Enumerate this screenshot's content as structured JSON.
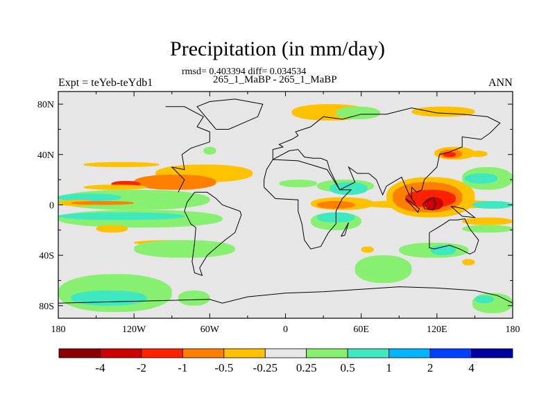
{
  "title": "Precipitation (in mm/day)",
  "subtitle": "rmsd= 0.403394 diff= 0.034534",
  "left_string": "Expt = teYeb-teYdb1",
  "center_string": "265_1_MaBP - 265_1_MaBP",
  "right_string": "ANN",
  "colors": {
    "background_field": "#e6e6e6",
    "coastline": "#000000"
  },
  "chart_data": {
    "type": "heatmap",
    "projection": "cylindrical-equidistant",
    "xlim": [
      -180,
      180
    ],
    "ylim": [
      -90,
      90
    ],
    "x_ticks": [
      {
        "value": -180,
        "label": "180"
      },
      {
        "value": -120,
        "label": "120W"
      },
      {
        "value": -60,
        "label": "60W"
      },
      {
        "value": 0,
        "label": "0"
      },
      {
        "value": 60,
        "label": "60E"
      },
      {
        "value": 120,
        "label": "120E"
      },
      {
        "value": 180,
        "label": "180"
      }
    ],
    "y_ticks": [
      {
        "value": 80,
        "label": "80N"
      },
      {
        "value": 40,
        "label": "40N"
      },
      {
        "value": 0,
        "label": "0"
      },
      {
        "value": -40,
        "label": "40S"
      },
      {
        "value": -80,
        "label": "80S"
      }
    ],
    "colorbar": {
      "colors": [
        "#8b0000",
        "#cc0000",
        "#ff2200",
        "#ff7f00",
        "#ffc200",
        "#e6e6e6",
        "#88f070",
        "#40e8c0",
        "#00b4ff",
        "#0040ff",
        "#0000a0"
      ],
      "labels": [
        "-4",
        "-2",
        "-1",
        "-0.5",
        "-0.25",
        "0.25",
        "0.5",
        "1",
        "2",
        "4"
      ]
    },
    "regions": [
      {
        "color": "#ffc200",
        "lon": [
          -103,
          -26
        ],
        "lat": [
          18,
          32
        ]
      },
      {
        "color": "#ff7f00",
        "lon": [
          -120,
          -55
        ],
        "lat": [
          12,
          24
        ]
      },
      {
        "color": "#ff2200",
        "lon": [
          -138,
          -115
        ],
        "lat": [
          14,
          19
        ]
      },
      {
        "color": "#ffc200",
        "lon": [
          -160,
          -110
        ],
        "lat": [
          12,
          16
        ]
      },
      {
        "color": "#ffc200",
        "lon": [
          -160,
          -100
        ],
        "lat": [
          30,
          34
        ]
      },
      {
        "color": "#88f070",
        "lon": [
          -180,
          -60
        ],
        "lat": [
          -4,
          12
        ]
      },
      {
        "color": "#40e8c0",
        "lon": [
          -180,
          -130
        ],
        "lat": [
          3,
          9
        ]
      },
      {
        "color": "#ffc200",
        "lon": [
          -180,
          -150
        ],
        "lat": [
          -1,
          4
        ]
      },
      {
        "color": "#ff7f00",
        "lon": [
          -170,
          -120
        ],
        "lat": [
          0,
          3
        ]
      },
      {
        "color": "#88f070",
        "lon": [
          -180,
          -50
        ],
        "lat": [
          -18,
          -4
        ]
      },
      {
        "color": "#40e8c0",
        "lon": [
          -180,
          -80
        ],
        "lat": [
          -12,
          -6
        ]
      },
      {
        "color": "#ffc200",
        "lon": [
          -150,
          -125
        ],
        "lat": [
          -22,
          -16
        ]
      },
      {
        "color": "#ffc200",
        "lon": [
          -120,
          -60
        ],
        "lat": [
          -32,
          -28
        ]
      },
      {
        "color": "#88f070",
        "lon": [
          -120,
          -40
        ],
        "lat": [
          -42,
          -28
        ]
      },
      {
        "color": "#88f070",
        "lon": [
          -180,
          -90
        ],
        "lat": [
          -85,
          -55
        ]
      },
      {
        "color": "#40e8c0",
        "lon": [
          -170,
          -110
        ],
        "lat": [
          -80,
          -68
        ]
      },
      {
        "color": "#88f070",
        "lon": [
          -85,
          -60
        ],
        "lat": [
          -80,
          -68
        ]
      },
      {
        "color": "#ffc200",
        "lon": [
          5,
          65
        ],
        "lat": [
          67,
          80
        ]
      },
      {
        "color": "#88f070",
        "lon": [
          40,
          75
        ],
        "lat": [
          68,
          78
        ]
      },
      {
        "color": "#ffc200",
        "lon": [
          100,
          150
        ],
        "lat": [
          70,
          78
        ]
      },
      {
        "color": "#88f070",
        "lon": [
          -65,
          -55
        ],
        "lat": [
          40,
          46
        ]
      },
      {
        "color": "#88f070",
        "lon": [
          -5,
          25
        ],
        "lat": [
          14,
          20
        ]
      },
      {
        "color": "#88f070",
        "lon": [
          25,
          70
        ],
        "lat": [
          10,
          20
        ]
      },
      {
        "color": "#40e8c0",
        "lon": [
          35,
          65
        ],
        "lat": [
          8,
          18
        ]
      },
      {
        "color": "#ffc200",
        "lon": [
          20,
          70
        ],
        "lat": [
          -4,
          6
        ]
      },
      {
        "color": "#ff7f00",
        "lon": [
          25,
          55
        ],
        "lat": [
          -3,
          3
        ]
      },
      {
        "color": "#88f070",
        "lon": [
          20,
          60
        ],
        "lat": [
          -20,
          -6
        ]
      },
      {
        "color": "#40e8c0",
        "lon": [
          25,
          55
        ],
        "lat": [
          -14,
          -6
        ]
      },
      {
        "color": "#ffc200",
        "lon": [
          60,
          175
        ],
        "lat": [
          -3,
          4
        ]
      },
      {
        "color": "#ffc200",
        "lon": [
          80,
          150
        ],
        "lat": [
          -10,
          22
        ]
      },
      {
        "color": "#ff7f00",
        "lon": [
          85,
          140
        ],
        "lat": [
          -6,
          18
        ]
      },
      {
        "color": "#ff2200",
        "lon": [
          95,
          135
        ],
        "lat": [
          -2,
          12
        ]
      },
      {
        "color": "#cc0000",
        "lon": [
          110,
          125
        ],
        "lat": [
          -4,
          6
        ]
      },
      {
        "color": "#ffc200",
        "lon": [
          118,
          150
        ],
        "lat": [
          36,
          46
        ]
      },
      {
        "color": "#ff7f00",
        "lon": [
          122,
          140
        ],
        "lat": [
          37,
          44
        ]
      },
      {
        "color": "#ff2200",
        "lon": [
          125,
          135
        ],
        "lat": [
          38,
          42
        ]
      },
      {
        "color": "#ffc200",
        "lon": [
          145,
          160
        ],
        "lat": [
          38,
          43
        ]
      },
      {
        "color": "#88f070",
        "lon": [
          140,
          180
        ],
        "lat": [
          12,
          30
        ]
      },
      {
        "color": "#40e8c0",
        "lon": [
          142,
          168
        ],
        "lat": [
          17,
          25
        ]
      },
      {
        "color": "#40e8c0",
        "lon": [
          148,
          180
        ],
        "lat": [
          -3,
          3
        ]
      },
      {
        "color": "#ffc200",
        "lon": [
          140,
          180
        ],
        "lat": [
          -16,
          -10
        ]
      },
      {
        "color": "#88f070",
        "lon": [
          140,
          180
        ],
        "lat": [
          -22,
          -16
        ]
      },
      {
        "color": "#88f070",
        "lon": [
          90,
          145
        ],
        "lat": [
          -42,
          -30
        ]
      },
      {
        "color": "#40e8c0",
        "lon": [
          115,
          135
        ],
        "lat": [
          -40,
          -32
        ]
      },
      {
        "color": "#88f070",
        "lon": [
          55,
          100
        ],
        "lat": [
          -62,
          -40
        ]
      },
      {
        "color": "#ffc200",
        "lon": [
          60,
          70
        ],
        "lat": [
          -38,
          -33
        ]
      },
      {
        "color": "#ffc200",
        "lon": [
          140,
          150
        ],
        "lat": [
          -48,
          -43
        ]
      },
      {
        "color": "#88f070",
        "lon": [
          148,
          180
        ],
        "lat": [
          -86,
          -70
        ]
      },
      {
        "color": "#40e8c0",
        "lon": [
          150,
          165
        ],
        "lat": [
          -78,
          -72
        ]
      }
    ],
    "coastlines": [
      [
        [
          -72,
          10
        ],
        [
          -78,
          2
        ],
        [
          -80,
          -5
        ],
        [
          -75,
          -15
        ],
        [
          -71,
          -18
        ],
        [
          -72,
          -30
        ],
        [
          -74,
          -45
        ],
        [
          -72,
          -54
        ],
        [
          -66,
          -56
        ],
        [
          -68,
          -50
        ],
        [
          -62,
          -40
        ],
        [
          -55,
          -34
        ],
        [
          -48,
          -28
        ],
        [
          -40,
          -22
        ],
        [
          -35,
          -8
        ],
        [
          -36,
          -5
        ],
        [
          -50,
          0
        ],
        [
          -55,
          5
        ],
        [
          -62,
          10
        ],
        [
          -72,
          10
        ]
      ],
      [
        [
          -85,
          10
        ],
        [
          -80,
          20
        ],
        [
          -90,
          30
        ],
        [
          -80,
          28
        ],
        [
          -82,
          40
        ],
        [
          -75,
          45
        ],
        [
          -60,
          50
        ],
        [
          -60,
          58
        ],
        [
          -70,
          62
        ],
        [
          -65,
          70
        ],
        [
          -80,
          78
        ],
        [
          -95,
          78
        ]
      ],
      [
        [
          -10,
          36
        ],
        [
          -15,
          28
        ],
        [
          -17,
          20
        ],
        [
          -17,
          14
        ],
        [
          -8,
          5
        ],
        [
          10,
          4
        ],
        [
          10,
          -5
        ],
        [
          13,
          -15
        ],
        [
          15,
          -28
        ],
        [
          20,
          -35
        ],
        [
          28,
          -33
        ],
        [
          34,
          -22
        ],
        [
          40,
          -15
        ],
        [
          40,
          -5
        ],
        [
          45,
          5
        ],
        [
          52,
          12
        ],
        [
          43,
          12
        ],
        [
          33,
          28
        ],
        [
          20,
          32
        ],
        [
          10,
          35
        ],
        [
          -10,
          36
        ]
      ],
      [
        [
          -10,
          36
        ],
        [
          -10,
          44
        ],
        [
          -2,
          46
        ],
        [
          -5,
          48
        ],
        [
          5,
          52
        ],
        [
          10,
          55
        ],
        [
          8,
          58
        ],
        [
          20,
          62
        ],
        [
          30,
          70
        ],
        [
          45,
          68
        ],
        [
          60,
          72
        ],
        [
          80,
          72
        ],
        [
          100,
          77
        ],
        [
          120,
          73
        ],
        [
          140,
          72
        ],
        [
          160,
          70
        ],
        [
          170,
          65
        ],
        [
          162,
          57
        ],
        [
          155,
          52
        ],
        [
          140,
          54
        ],
        [
          140,
          46
        ],
        [
          130,
          42
        ],
        [
          122,
          40
        ],
        [
          120,
          30
        ],
        [
          110,
          20
        ],
        [
          108,
          12
        ],
        [
          104,
          10
        ],
        [
          100,
          14
        ],
        [
          100,
          5
        ],
        [
          103,
          1
        ],
        [
          98,
          8
        ],
        [
          92,
          22
        ],
        [
          80,
          15
        ],
        [
          77,
          8
        ],
        [
          72,
          20
        ],
        [
          66,
          25
        ],
        [
          57,
          25
        ],
        [
          50,
          30
        ],
        [
          55,
          18
        ],
        [
          43,
          12
        ],
        [
          35,
          28
        ],
        [
          33,
          35
        ],
        [
          28,
          37
        ],
        [
          22,
          37
        ],
        [
          15,
          38
        ],
        [
          10,
          44
        ],
        [
          3,
          43
        ],
        [
          -10,
          36
        ]
      ],
      [
        [
          114,
          -22
        ],
        [
          114,
          -34
        ],
        [
          118,
          -35
        ],
        [
          130,
          -32
        ],
        [
          138,
          -35
        ],
        [
          146,
          -39
        ],
        [
          150,
          -37
        ],
        [
          153,
          -28
        ],
        [
          146,
          -19
        ],
        [
          142,
          -11
        ],
        [
          136,
          -12
        ],
        [
          130,
          -12
        ],
        [
          124,
          -16
        ],
        [
          114,
          -22
        ]
      ],
      [
        [
          95,
          5
        ],
        [
          105,
          -6
        ],
        [
          106,
          -3
        ],
        [
          100,
          2
        ],
        [
          95,
          5
        ]
      ],
      [
        [
          109,
          1
        ],
        [
          117,
          6
        ],
        [
          119,
          1
        ],
        [
          117,
          -4
        ],
        [
          110,
          -3
        ],
        [
          109,
          1
        ]
      ],
      [
        [
          131,
          -1
        ],
        [
          141,
          -3
        ],
        [
          150,
          -10
        ],
        [
          140,
          -9
        ],
        [
          131,
          -1
        ]
      ],
      [
        [
          44,
          -25
        ],
        [
          49,
          -16
        ],
        [
          50,
          -14
        ],
        [
          47,
          -24
        ],
        [
          44,
          -25
        ]
      ],
      [
        [
          -55,
          60
        ],
        [
          -45,
          60
        ],
        [
          -22,
          70
        ],
        [
          -18,
          80
        ],
        [
          -40,
          84
        ],
        [
          -60,
          82
        ],
        [
          -70,
          78
        ],
        [
          -55,
          60
        ]
      ],
      [
        [
          -180,
          -78
        ],
        [
          -60,
          -75
        ],
        [
          -50,
          -78
        ],
        [
          -30,
          -73
        ],
        [
          0,
          -70
        ],
        [
          30,
          -69
        ],
        [
          60,
          -67
        ],
        [
          90,
          -65
        ],
        [
          120,
          -66
        ],
        [
          150,
          -68
        ],
        [
          168,
          -72
        ],
        [
          180,
          -78
        ]
      ]
    ]
  }
}
